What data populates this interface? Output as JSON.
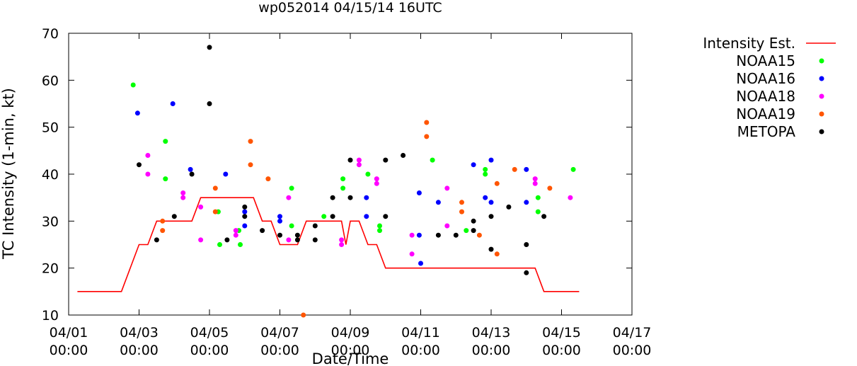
{
  "chart_data": {
    "type": "scatter",
    "title": "wp052014 04/15/14 16UTC",
    "xlabel": "Date/Time",
    "ylabel": "TC Intensity (1-min, kt)",
    "xlim": [
      "2014-04-01 00:00",
      "2014-04-17 00:00"
    ],
    "ylim": [
      10,
      70
    ],
    "grid": false,
    "legend_position": "right",
    "x_ticks": [
      {
        "line1": "04/01",
        "line2": "00:00",
        "value": "2014-04-01 00:00"
      },
      {
        "line1": "04/03",
        "line2": "00:00",
        "value": "2014-04-03 00:00"
      },
      {
        "line1": "04/05",
        "line2": "00:00",
        "value": "2014-04-05 00:00"
      },
      {
        "line1": "04/07",
        "line2": "00:00",
        "value": "2014-04-07 00:00"
      },
      {
        "line1": "04/09",
        "line2": "00:00",
        "value": "2014-04-09 00:00"
      },
      {
        "line1": "04/11",
        "line2": "00:00",
        "value": "2014-04-11 00:00"
      },
      {
        "line1": "04/13",
        "line2": "00:00",
        "value": "2014-04-13 00:00"
      },
      {
        "line1": "04/15",
        "line2": "00:00",
        "value": "2014-04-15 00:00"
      },
      {
        "line1": "04/17",
        "line2": "00:00",
        "value": "2014-04-17 00:00"
      }
    ],
    "y_ticks": [
      "10",
      "20",
      "30",
      "40",
      "50",
      "60",
      "70"
    ],
    "series": [
      {
        "name": "Intensity Est.",
        "kind": "line",
        "color": "#ff0000",
        "points": [
          [
            "2014-04-01 06:00",
            15
          ],
          [
            "2014-04-02 12:00",
            15
          ],
          [
            "2014-04-03 00:00",
            25
          ],
          [
            "2014-04-03 06:00",
            25
          ],
          [
            "2014-04-03 12:00",
            30
          ],
          [
            "2014-04-04 12:00",
            30
          ],
          [
            "2014-04-04 18:00",
            35
          ],
          [
            "2014-04-06 06:00",
            35
          ],
          [
            "2014-04-06 12:00",
            30
          ],
          [
            "2014-04-06 18:00",
            30
          ],
          [
            "2014-04-07 00:00",
            25
          ],
          [
            "2014-04-07 12:00",
            25
          ],
          [
            "2014-04-07 18:00",
            30
          ],
          [
            "2014-04-08 18:00",
            30
          ],
          [
            "2014-04-08 21:00",
            25
          ],
          [
            "2014-04-09 00:00",
            30
          ],
          [
            "2014-04-09 06:00",
            30
          ],
          [
            "2014-04-09 12:00",
            25
          ],
          [
            "2014-04-09 18:00",
            25
          ],
          [
            "2014-04-10 00:00",
            20
          ],
          [
            "2014-04-14 06:00",
            20
          ],
          [
            "2014-04-14 12:00",
            15
          ],
          [
            "2014-04-15 12:00",
            15
          ]
        ]
      },
      {
        "name": "NOAA15",
        "kind": "points",
        "color": "#00ff00",
        "points": [
          [
            "2014-04-02 20:00",
            59
          ],
          [
            "2014-04-03 18:00",
            47
          ],
          [
            "2014-04-03 18:00",
            39
          ],
          [
            "2014-04-05 06:00",
            32
          ],
          [
            "2014-04-05 07:00",
            25
          ],
          [
            "2014-04-05 20:00",
            28
          ],
          [
            "2014-04-05 21:00",
            25
          ],
          [
            "2014-04-07 08:00",
            37
          ],
          [
            "2014-04-07 08:00",
            29
          ],
          [
            "2014-04-08 06:00",
            31
          ],
          [
            "2014-04-08 19:00",
            39
          ],
          [
            "2014-04-08 19:00",
            37
          ],
          [
            "2014-04-09 12:00",
            40
          ],
          [
            "2014-04-09 20:00",
            29
          ],
          [
            "2014-04-09 20:00",
            28
          ],
          [
            "2014-04-11 08:00",
            43
          ],
          [
            "2014-04-12 07:00",
            28
          ],
          [
            "2014-04-12 20:00",
            41
          ],
          [
            "2014-04-12 20:00",
            40
          ],
          [
            "2014-04-14 08:00",
            35
          ],
          [
            "2014-04-14 08:00",
            32
          ],
          [
            "2014-04-15 08:00",
            41
          ]
        ]
      },
      {
        "name": "NOAA16",
        "kind": "points",
        "color": "#0000ff",
        "points": [
          [
            "2014-04-02 23:00",
            53
          ],
          [
            "2014-04-03 23:00",
            55
          ],
          [
            "2014-04-04 11:00",
            41
          ],
          [
            "2014-04-05 11:00",
            40
          ],
          [
            "2014-04-06 00:00",
            32
          ],
          [
            "2014-04-06 00:00",
            29
          ],
          [
            "2014-04-07 00:00",
            31
          ],
          [
            "2014-04-07 00:00",
            30
          ],
          [
            "2014-04-09 11:00",
            35
          ],
          [
            "2014-04-09 11:00",
            31
          ],
          [
            "2014-04-10 23:00",
            36
          ],
          [
            "2014-04-10 23:00",
            27
          ],
          [
            "2014-04-11 00:00",
            21
          ],
          [
            "2014-04-11 12:00",
            34
          ],
          [
            "2014-04-12 12:00",
            42
          ],
          [
            "2014-04-12 20:00",
            35
          ],
          [
            "2014-04-13 00:00",
            43
          ],
          [
            "2014-04-13 00:00",
            34
          ],
          [
            "2014-04-14 00:00",
            41
          ],
          [
            "2014-04-14 00:00",
            34
          ]
        ]
      },
      {
        "name": "NOAA18",
        "kind": "points",
        "color": "#ff00ff",
        "points": [
          [
            "2014-04-03 06:00",
            44
          ],
          [
            "2014-04-03 06:00",
            40
          ],
          [
            "2014-04-04 06:00",
            36
          ],
          [
            "2014-04-04 06:00",
            35
          ],
          [
            "2014-04-04 18:00",
            33
          ],
          [
            "2014-04-04 18:00",
            26
          ],
          [
            "2014-04-05 18:00",
            28
          ],
          [
            "2014-04-05 18:00",
            27
          ],
          [
            "2014-04-07 06:00",
            35
          ],
          [
            "2014-04-07 06:00",
            26
          ],
          [
            "2014-04-08 18:00",
            26
          ],
          [
            "2014-04-08 18:00",
            25
          ],
          [
            "2014-04-09 06:00",
            43
          ],
          [
            "2014-04-09 06:00",
            42
          ],
          [
            "2014-04-09 18:00",
            39
          ],
          [
            "2014-04-09 18:00",
            38
          ],
          [
            "2014-04-10 18:00",
            27
          ],
          [
            "2014-04-10 18:00",
            23
          ],
          [
            "2014-04-11 18:00",
            37
          ],
          [
            "2014-04-11 18:00",
            29
          ],
          [
            "2014-04-14 06:00",
            39
          ],
          [
            "2014-04-14 06:00",
            38
          ],
          [
            "2014-04-15 06:00",
            35
          ]
        ]
      },
      {
        "name": "NOAA19",
        "kind": "points",
        "color": "#ff5500",
        "points": [
          [
            "2014-04-03 16:00",
            30
          ],
          [
            "2014-04-03 16:00",
            28
          ],
          [
            "2014-04-05 04:00",
            37
          ],
          [
            "2014-04-05 04:00",
            32
          ],
          [
            "2014-04-06 04:00",
            47
          ],
          [
            "2014-04-06 04:00",
            42
          ],
          [
            "2014-04-06 16:00",
            39
          ],
          [
            "2014-04-07 16:00",
            10
          ],
          [
            "2014-04-11 04:00",
            51
          ],
          [
            "2014-04-11 04:00",
            48
          ],
          [
            "2014-04-12 04:00",
            34
          ],
          [
            "2014-04-12 04:00",
            32
          ],
          [
            "2014-04-12 16:00",
            27
          ],
          [
            "2014-04-13 04:00",
            38
          ],
          [
            "2014-04-13 04:00",
            23
          ],
          [
            "2014-04-13 16:00",
            41
          ],
          [
            "2014-04-14 16:00",
            37
          ]
        ]
      },
      {
        "name": "METOPA",
        "kind": "points",
        "color": "#000000",
        "points": [
          [
            "2014-04-03 00:00",
            42
          ],
          [
            "2014-04-03 12:00",
            26
          ],
          [
            "2014-04-04 00:00",
            31
          ],
          [
            "2014-04-04 12:00",
            40
          ],
          [
            "2014-04-05 00:00",
            67
          ],
          [
            "2014-04-05 00:00",
            55
          ],
          [
            "2014-04-05 12:00",
            26
          ],
          [
            "2014-04-06 00:00",
            33
          ],
          [
            "2014-04-06 00:00",
            31
          ],
          [
            "2014-04-06 12:00",
            28
          ],
          [
            "2014-04-07 00:00",
            27
          ],
          [
            "2014-04-07 12:00",
            27
          ],
          [
            "2014-04-07 12:00",
            26
          ],
          [
            "2014-04-08 00:00",
            29
          ],
          [
            "2014-04-08 00:00",
            26
          ],
          [
            "2014-04-08 12:00",
            35
          ],
          [
            "2014-04-08 12:00",
            31
          ],
          [
            "2014-04-09 00:00",
            43
          ],
          [
            "2014-04-09 00:00",
            35
          ],
          [
            "2014-04-10 00:00",
            43
          ],
          [
            "2014-04-10 00:00",
            31
          ],
          [
            "2014-04-10 12:00",
            44
          ],
          [
            "2014-04-11 12:00",
            27
          ],
          [
            "2014-04-12 00:00",
            27
          ],
          [
            "2014-04-12 12:00",
            30
          ],
          [
            "2014-04-12 12:00",
            28
          ],
          [
            "2014-04-13 00:00",
            31
          ],
          [
            "2014-04-13 00:00",
            24
          ],
          [
            "2014-04-13 12:00",
            33
          ],
          [
            "2014-04-14 00:00",
            25
          ],
          [
            "2014-04-14 00:00",
            19
          ],
          [
            "2014-04-14 12:00",
            31
          ]
        ]
      }
    ]
  }
}
